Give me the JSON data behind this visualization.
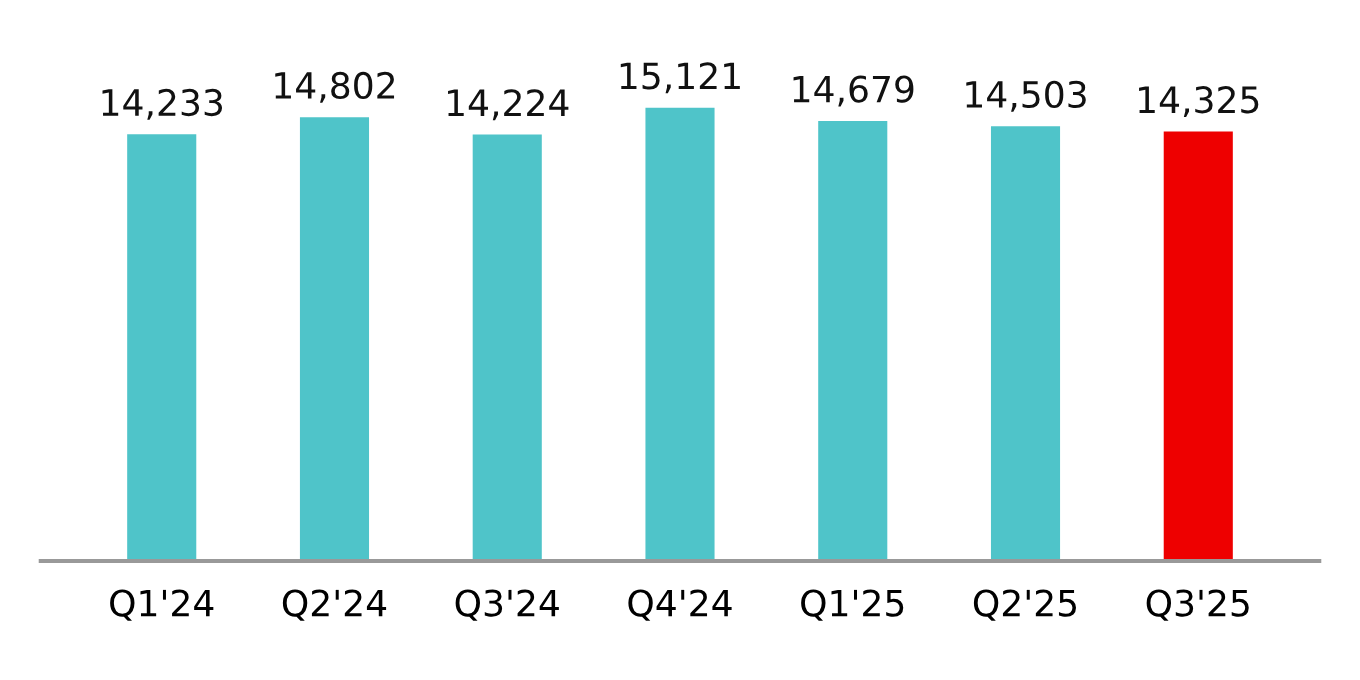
{
  "chart_data": {
    "type": "bar",
    "categories": [
      "Q1'24",
      "Q2'24",
      "Q3'24",
      "Q4'24",
      "Q1'25",
      "Q2'25",
      "Q3'25"
    ],
    "values": [
      14233,
      14802,
      14224,
      15121,
      14679,
      14503,
      14325
    ],
    "colors": [
      "#4fc4c9",
      "#4fc4c9",
      "#4fc4c9",
      "#4fc4c9",
      "#4fc4c9",
      "#4fc4c9",
      "#ee0000"
    ],
    "value_labels": [
      "14,233",
      "14,802",
      "14,224",
      "15,121",
      "14,679",
      "14,503",
      "14,325"
    ],
    "grid": false,
    "legend": false
  }
}
